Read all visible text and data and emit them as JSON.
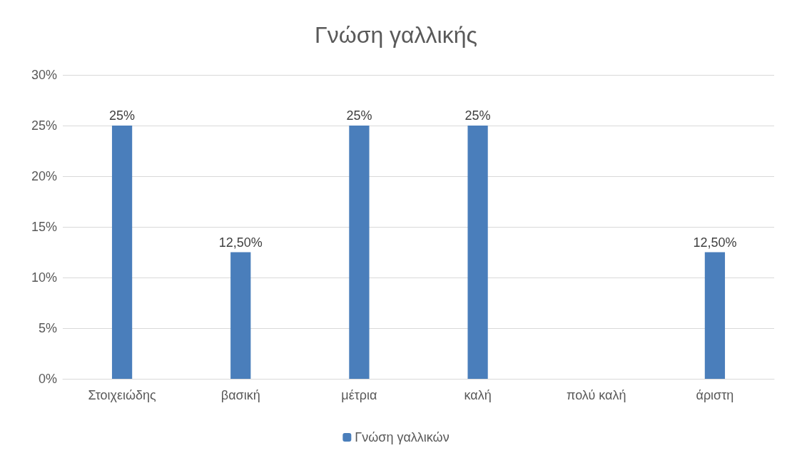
{
  "chart_data": {
    "type": "bar",
    "title": "Γνώση γαλλικής",
    "categories": [
      "Στοιχειώδης",
      "βασική",
      "μέτρια",
      "καλή",
      "πολύ καλή",
      "άριστη"
    ],
    "series": [
      {
        "name": "Γνώση γαλλικών",
        "color": "#4a7ebb",
        "values": [
          25,
          12.5,
          25,
          25,
          null,
          12.5
        ],
        "value_labels": [
          "25%",
          "12,50%",
          "25%",
          "25%",
          null,
          "12,50%"
        ]
      }
    ],
    "ylim": [
      0,
      30
    ],
    "yticks": [
      {
        "value": 0,
        "label": "0%"
      },
      {
        "value": 5,
        "label": "5%"
      },
      {
        "value": 10,
        "label": "10%"
      },
      {
        "value": 15,
        "label": "15%"
      },
      {
        "value": 20,
        "label": "20%"
      },
      {
        "value": 25,
        "label": "25%"
      },
      {
        "value": 30,
        "label": "30%"
      }
    ],
    "grid": "y",
    "legend": "bottom"
  }
}
